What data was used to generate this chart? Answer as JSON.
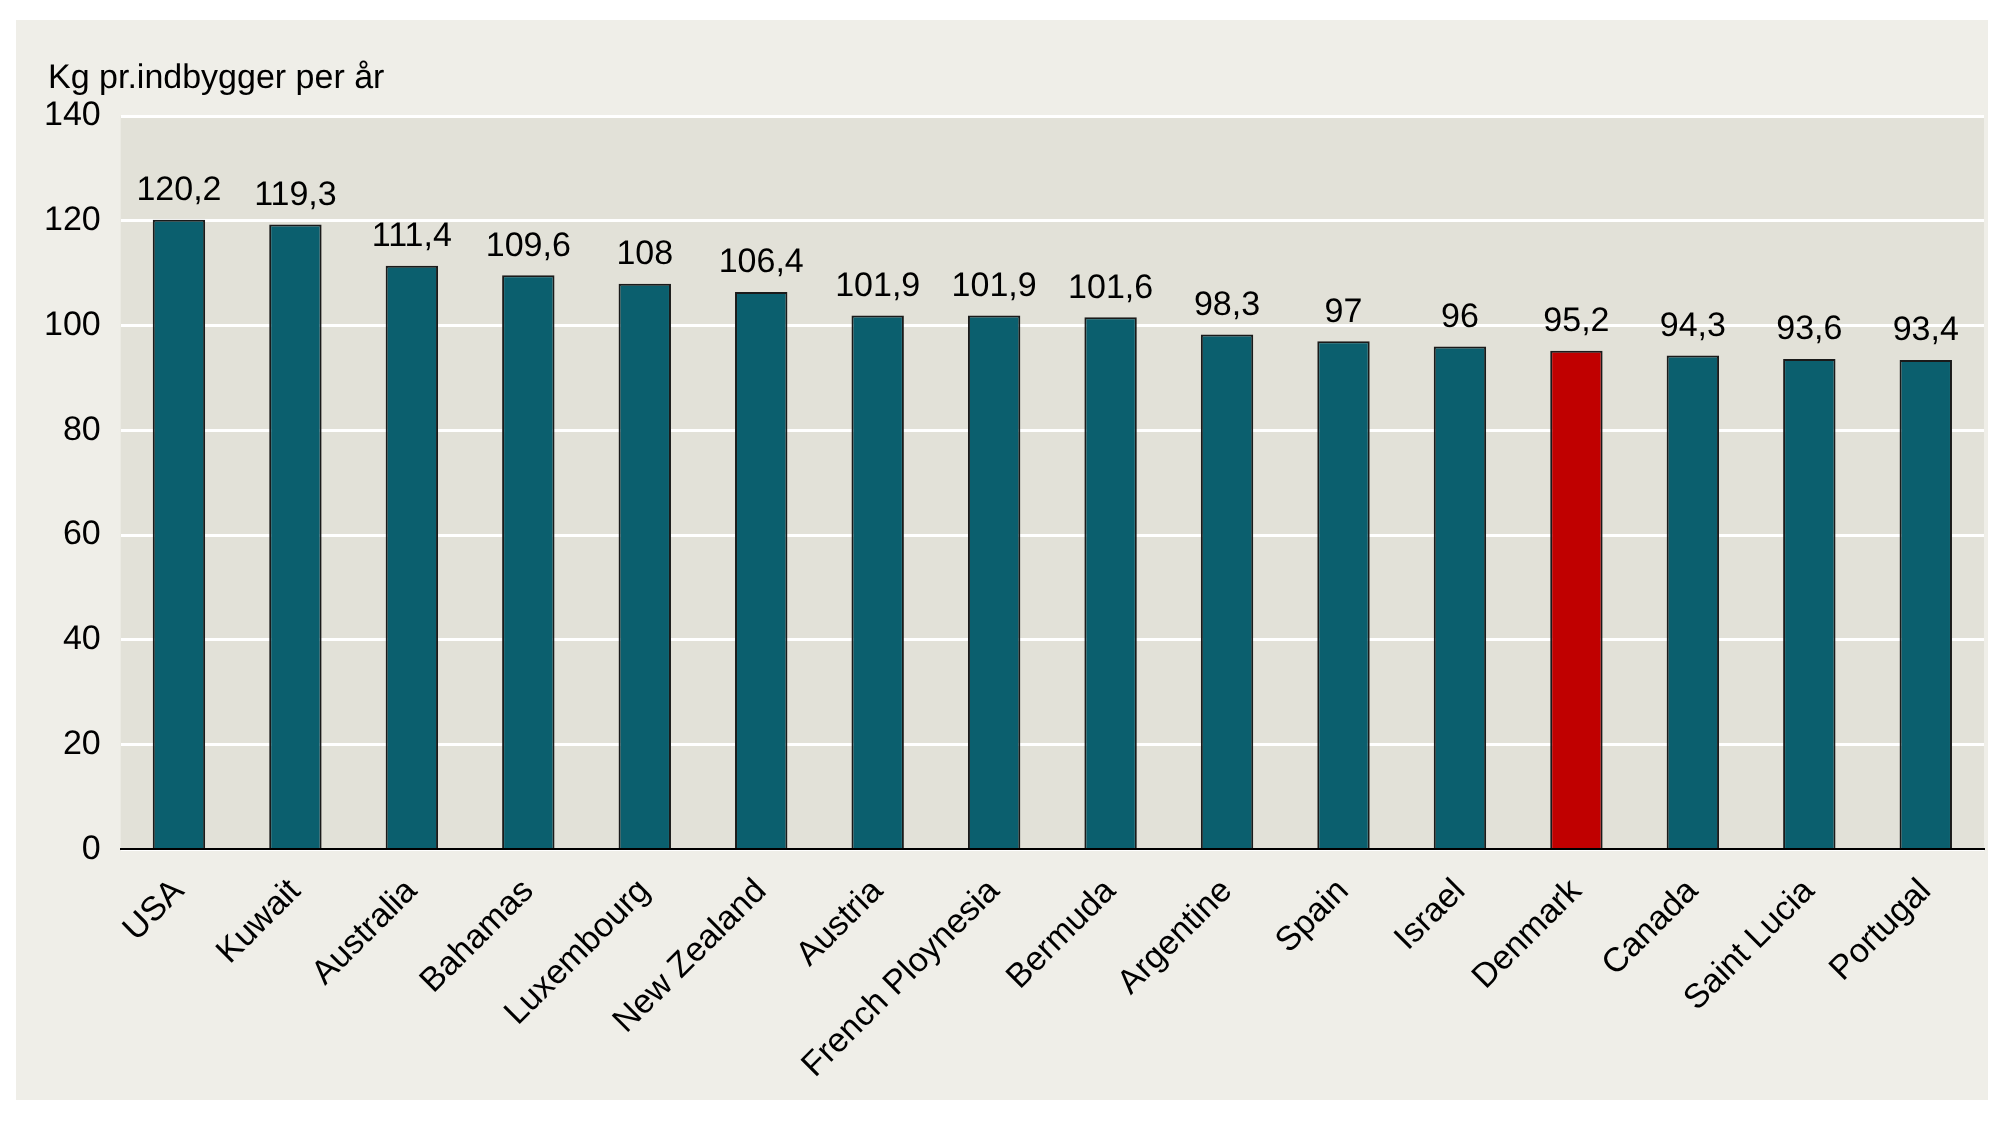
{
  "chart_data": {
    "type": "bar",
    "ylabel": "Kg pr.indbygger per år",
    "categories": [
      "USA",
      "Kuwait",
      "Australia",
      "Bahamas",
      "Luxembourg",
      "New Zealand",
      "Austria",
      "French Ploynesia",
      "Bermuda",
      "Argentine",
      "Spain",
      "Israel",
      "Denmark",
      "Canada",
      "Saint Lucia",
      "Portugal"
    ],
    "values": [
      120.2,
      119.3,
      111.4,
      109.6,
      108,
      106.4,
      101.9,
      101.9,
      101.6,
      98.3,
      97,
      96,
      95.2,
      94.3,
      93.6,
      93.4
    ],
    "value_labels": [
      "120,2",
      "119,3",
      "111,4",
      "109,6",
      "108",
      "106,4",
      "101,9",
      "101,9",
      "101,6",
      "98,3",
      "97",
      "96",
      "95,2",
      "94,3",
      "93,6",
      "93,4"
    ],
    "colors": [
      "#0b5f6e",
      "#0b5f6e",
      "#0b5f6e",
      "#0b5f6e",
      "#0b5f6e",
      "#0b5f6e",
      "#0b5f6e",
      "#0b5f6e",
      "#0b5f6e",
      "#0b5f6e",
      "#0b5f6e",
      "#0b5f6e",
      "#c00000",
      "#0b5f6e",
      "#0b5f6e",
      "#0b5f6e"
    ],
    "ylim": [
      0,
      140
    ],
    "yticks": [
      0,
      20,
      40,
      60,
      80,
      100,
      120,
      140
    ],
    "grid": "y",
    "legend": false
  }
}
